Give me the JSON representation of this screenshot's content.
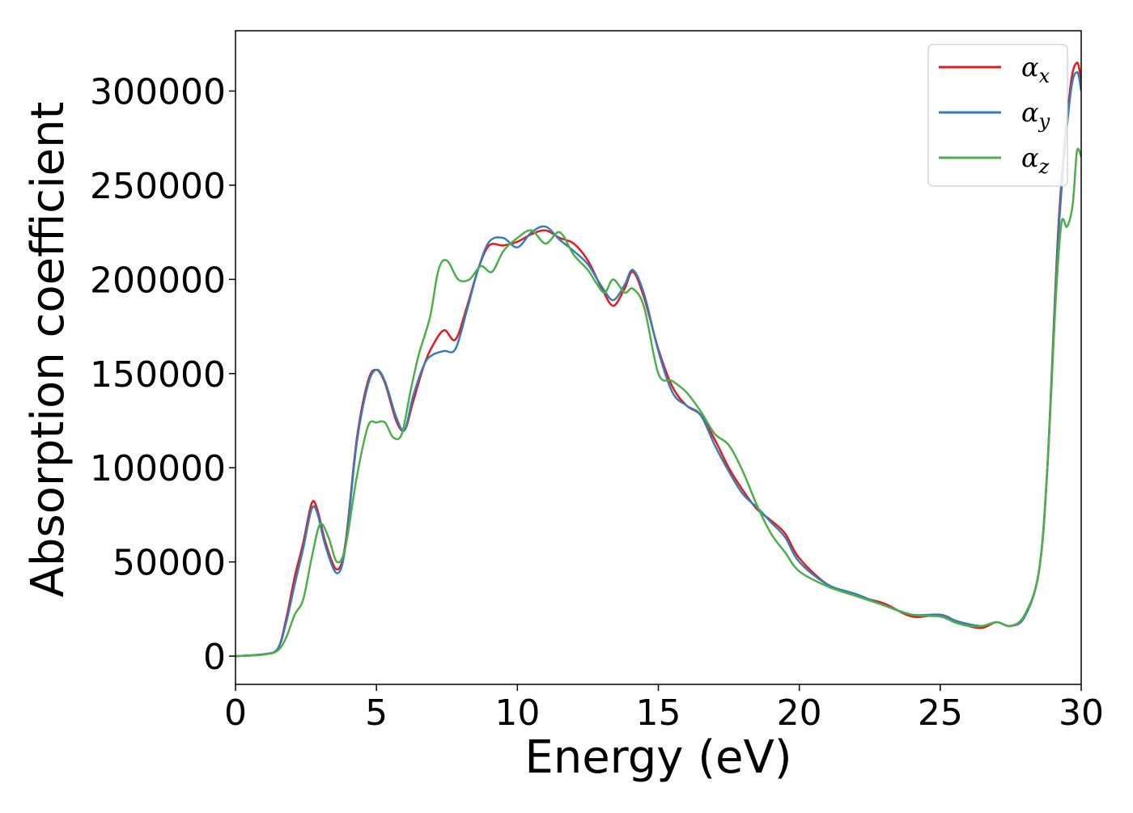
{
  "chart_data": {
    "type": "line",
    "xlabel": "Energy (eV)",
    "ylabel": "Absorption coefficient",
    "xlim": [
      0,
      30
    ],
    "ylim": [
      -15000,
      332000
    ],
    "xticks": [
      0,
      5,
      10,
      15,
      20,
      25,
      30
    ],
    "xtick_labels": [
      "0",
      "5",
      "10",
      "15",
      "20",
      "25",
      "30"
    ],
    "yticks": [
      0,
      50000,
      100000,
      150000,
      200000,
      250000,
      300000
    ],
    "ytick_labels": [
      "0",
      "50000",
      "100000",
      "150000",
      "200000",
      "250000",
      "300000"
    ],
    "grid": false,
    "legend_position": "top-right",
    "series": [
      {
        "name": "α",
        "subscript": "x",
        "color": "#e41a1c",
        "x": [
          0,
          1,
          1.5,
          1.8,
          2.1,
          2.4,
          2.7,
          2.9,
          3.2,
          3.6,
          3.9,
          4.3,
          4.7,
          5.0,
          5.3,
          5.7,
          6.0,
          6.3,
          6.7,
          7.0,
          7.4,
          7.8,
          8.2,
          8.6,
          9.0,
          9.5,
          10.0,
          10.5,
          11.0,
          11.5,
          12.0,
          12.5,
          13.0,
          13.4,
          13.8,
          14.1,
          14.5,
          15.0,
          15.5,
          16.0,
          16.5,
          17.0,
          17.5,
          18.0,
          18.5,
          19.0,
          19.5,
          20.0,
          21.0,
          22.0,
          23.0,
          24.0,
          25.0,
          25.5,
          26.0,
          26.5,
          27.0,
          27.5,
          28.0,
          28.5,
          28.8,
          29.2,
          29.6,
          29.85,
          30.0
        ],
        "y": [
          0,
          1000,
          4000,
          20000,
          42000,
          60000,
          81000,
          78000,
          60000,
          46000,
          60000,
          115000,
          146000,
          152000,
          145000,
          125000,
          120000,
          135000,
          155000,
          165000,
          173000,
          168000,
          185000,
          205000,
          218000,
          218000,
          220000,
          224000,
          226000,
          222000,
          219000,
          210000,
          195000,
          186000,
          195000,
          204000,
          190000,
          163000,
          143000,
          133000,
          128000,
          115000,
          100000,
          88000,
          78000,
          72000,
          65000,
          52000,
          38000,
          32000,
          28000,
          21000,
          22000,
          19000,
          16000,
          15000,
          18000,
          16000,
          22000,
          45000,
          100000,
          230000,
          300000,
          315000,
          305000
        ]
      },
      {
        "name": "α",
        "subscript": "y",
        "color": "#377eb8",
        "x": [
          0,
          1,
          1.5,
          1.8,
          2.1,
          2.4,
          2.7,
          2.9,
          3.2,
          3.6,
          3.9,
          4.3,
          4.7,
          5.0,
          5.3,
          5.7,
          6.0,
          6.3,
          6.7,
          7.0,
          7.4,
          7.8,
          8.2,
          8.6,
          9.0,
          9.5,
          10.0,
          10.5,
          11.0,
          11.5,
          12.0,
          12.5,
          13.0,
          13.4,
          13.8,
          14.1,
          14.5,
          15.0,
          15.5,
          16.0,
          16.5,
          17.0,
          17.5,
          18.0,
          18.5,
          19.0,
          19.5,
          20.0,
          21.0,
          22.0,
          23.0,
          24.0,
          25.0,
          25.5,
          26.0,
          26.5,
          27.0,
          27.5,
          28.0,
          28.5,
          28.8,
          29.2,
          29.6,
          29.85,
          30.0
        ],
        "y": [
          0,
          1000,
          4000,
          18000,
          38000,
          57000,
          78000,
          76000,
          58000,
          44000,
          58000,
          113000,
          144000,
          152000,
          146000,
          127000,
          120000,
          138000,
          155000,
          160000,
          162000,
          163000,
          183000,
          205000,
          220000,
          222000,
          217000,
          225000,
          228000,
          221000,
          215000,
          208000,
          196000,
          189000,
          197000,
          205000,
          192000,
          162000,
          140000,
          133000,
          128000,
          112000,
          98000,
          86000,
          79000,
          71000,
          63000,
          50000,
          38000,
          33000,
          27000,
          22000,
          22000,
          19000,
          17000,
          16000,
          18000,
          16000,
          21000,
          45000,
          100000,
          225000,
          296000,
          310000,
          300000
        ]
      },
      {
        "name": "α",
        "subscript": "z",
        "color": "#4daf4a",
        "x": [
          0,
          1,
          1.5,
          1.8,
          2.1,
          2.4,
          2.7,
          3.0,
          3.3,
          3.6,
          3.9,
          4.3,
          4.7,
          5.0,
          5.3,
          5.6,
          5.9,
          6.2,
          6.5,
          6.9,
          7.2,
          7.5,
          7.9,
          8.3,
          8.7,
          9.1,
          9.5,
          10.0,
          10.5,
          11.0,
          11.5,
          12.0,
          12.5,
          12.8,
          13.1,
          13.4,
          13.8,
          14.1,
          14.5,
          15.0,
          15.5,
          16.0,
          16.5,
          17.0,
          17.5,
          18.0,
          18.5,
          19.0,
          19.5,
          20.0,
          21.0,
          22.0,
          23.0,
          24.0,
          25.0,
          25.5,
          26.0,
          26.5,
          27.0,
          27.5,
          28.0,
          28.5,
          28.8,
          29.1,
          29.3,
          29.5,
          29.7,
          29.85,
          30.0
        ],
        "y": [
          0,
          800,
          3000,
          10000,
          22000,
          30000,
          52000,
          70000,
          63000,
          50000,
          58000,
          95000,
          122000,
          124000,
          124000,
          116000,
          118000,
          140000,
          160000,
          180000,
          205000,
          210000,
          200000,
          200000,
          207000,
          204000,
          215000,
          222000,
          226000,
          219000,
          225000,
          213000,
          205000,
          198000,
          193000,
          200000,
          193000,
          195000,
          185000,
          150000,
          146000,
          140000,
          130000,
          118000,
          112000,
          98000,
          80000,
          65000,
          55000,
          45000,
          37000,
          32000,
          27000,
          22000,
          21000,
          18000,
          16000,
          16000,
          18000,
          16000,
          22000,
          45000,
          100000,
          190000,
          230000,
          228000,
          240000,
          268000,
          265000
        ]
      }
    ]
  }
}
